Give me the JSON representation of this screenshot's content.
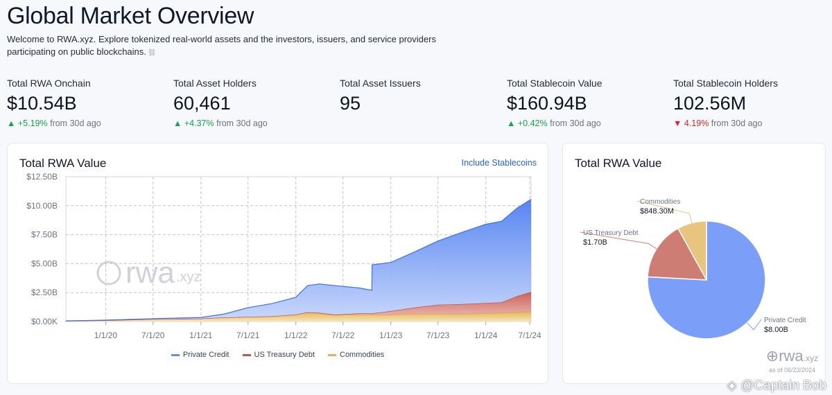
{
  "page": {
    "title": "Global Market Overview",
    "intro": "Welcome to RWA.xyz. Explore tokenized real-world assets and the investors, issuers, and service providers participating on public blockchains.",
    "intro_emoji": "⛓"
  },
  "stats": [
    {
      "label": "Total RWA Onchain",
      "value": "$10.54B",
      "change": "+5.19%",
      "direction": "up",
      "suffix": "from 30d ago"
    },
    {
      "label": "Total Asset Holders",
      "value": "60,461",
      "change": "+4.37%",
      "direction": "up",
      "suffix": "from 30d ago"
    },
    {
      "label": "Total Asset Issuers",
      "value": "95"
    },
    {
      "label": "Total Stablecoin Value",
      "value": "$160.94B",
      "change": "+0.42%",
      "direction": "up",
      "suffix": "from 30d ago"
    },
    {
      "label": "Total Stablecoin Holders",
      "value": "102.56M",
      "change": "4.19%",
      "direction": "down",
      "suffix": "from 30d ago"
    }
  ],
  "area_card": {
    "title": "Total RWA Value",
    "link": "Include Stablecoins"
  },
  "pie_card": {
    "title": "Total RWA Value"
  },
  "watermark": {
    "logo": "rwa",
    "domain": ".xyz",
    "asof": "as of 06/23/2024",
    "credit": "@Captain Bob"
  },
  "colors": {
    "private_credit": "#6b93f5",
    "us_treasury": "#c97a72",
    "commodities": "#e8c57f",
    "accent": "#2563eb"
  },
  "chart_data": [
    {
      "type": "area",
      "stacked": true,
      "title": "Total RWA Value",
      "xlabel": "",
      "ylabel": "",
      "ylim": [
        0,
        12.5
      ],
      "y_unit": "B USD",
      "y_ticks": [
        "$0.00K",
        "$2.50B",
        "$5.00B",
        "$7.50B",
        "$10.00B",
        "$12.50B"
      ],
      "x_ticks": [
        "1/1/20",
        "7/1/20",
        "1/1/21",
        "7/1/21",
        "1/1/22",
        "7/1/22",
        "1/1/23",
        "7/1/23",
        "1/1/24",
        "7/1/24"
      ],
      "x_range": [
        "2019-08-01",
        "2024-06-23"
      ],
      "grid": true,
      "legend": "bottom",
      "x": [
        "2019-08-01",
        "2020-01-01",
        "2020-07-01",
        "2021-01-01",
        "2021-04-01",
        "2021-07-01",
        "2021-10-01",
        "2022-01-01",
        "2022-02-15",
        "2022-04-01",
        "2022-06-01",
        "2022-09-01",
        "2022-10-20",
        "2022-10-21",
        "2023-01-01",
        "2023-04-01",
        "2023-07-01",
        "2023-10-01",
        "2024-01-01",
        "2024-03-01",
        "2024-05-01",
        "2024-06-23"
      ],
      "series": [
        {
          "name": "Commodities",
          "values": [
            0.05,
            0.1,
            0.2,
            0.25,
            0.35,
            0.4,
            0.45,
            0.6,
            0.8,
            0.7,
            0.55,
            0.6,
            0.6,
            0.6,
            0.6,
            0.65,
            0.65,
            0.65,
            0.7,
            0.75,
            0.8,
            0.85
          ]
        },
        {
          "name": "US Treasury Debt",
          "values": [
            0,
            0,
            0,
            0,
            0,
            0,
            0,
            0,
            0,
            0.05,
            0.05,
            0.1,
            0.1,
            0.1,
            0.3,
            0.55,
            0.8,
            0.85,
            0.9,
            0.9,
            1.4,
            1.7
          ]
        },
        {
          "name": "Private Credit",
          "values": [
            0.01,
            0.02,
            0.05,
            0.1,
            0.3,
            0.8,
            1.1,
            1.5,
            2.3,
            2.5,
            2.5,
            2.2,
            2.0,
            4.2,
            4.2,
            4.8,
            5.5,
            6.2,
            6.8,
            7.0,
            7.6,
            8.0
          ]
        }
      ]
    },
    {
      "type": "pie",
      "title": "Total RWA Value",
      "series": [
        {
          "name": "Private Credit",
          "label": "$8.00B",
          "value": 8.0,
          "color": "#7b9ef8"
        },
        {
          "name": "US Treasury Debt",
          "label": "$1.70B",
          "value": 1.7,
          "color": "#ce7d74"
        },
        {
          "name": "Commodities",
          "label": "$848.30M",
          "value": 0.8483,
          "color": "#e9c47e"
        }
      ]
    }
  ]
}
